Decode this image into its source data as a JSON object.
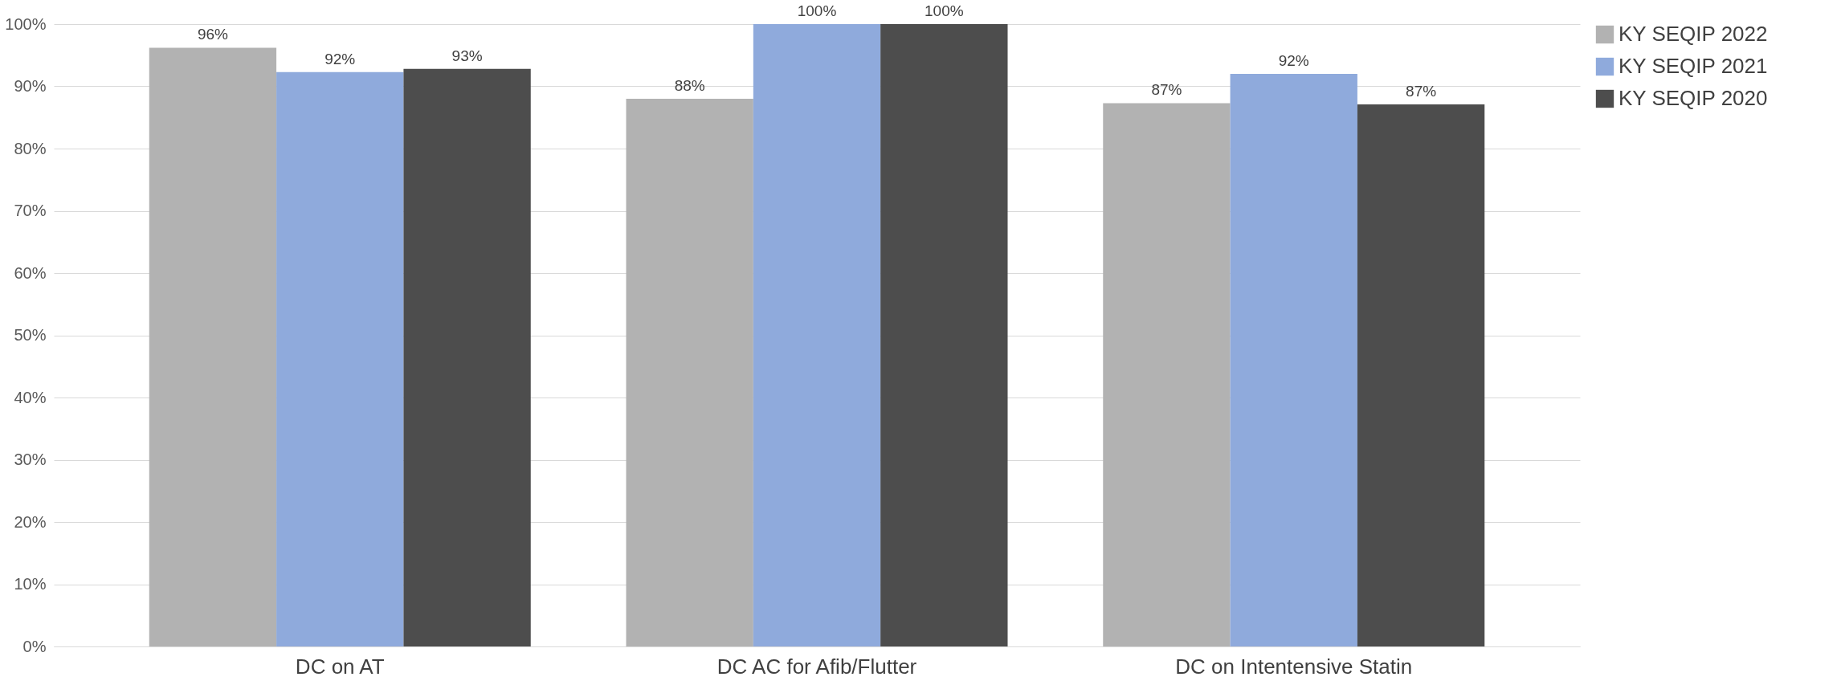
{
  "chart_data": {
    "type": "bar",
    "categories": [
      "DC on AT",
      "DC AC for Afib/Flutter",
      "DC on Intentensive Statin"
    ],
    "series": [
      {
        "name": "KY SEQIP 2022",
        "color": "#b2b2b2",
        "values": [
          96.2,
          88,
          87.3
        ],
        "value_labels": [
          "96%",
          "88%",
          "87%"
        ]
      },
      {
        "name": "KY SEQIP 2021",
        "color": "#8faadc",
        "values": [
          92.3,
          100,
          92
        ],
        "value_labels": [
          "92%",
          "100%",
          "92%"
        ]
      },
      {
        "name": "KY SEQIP 2020",
        "color": "#4d4d4d",
        "values": [
          92.8,
          100,
          87.1
        ],
        "value_labels": [
          "93%",
          "100%",
          "87%"
        ]
      }
    ],
    "ylim": [
      0,
      100
    ],
    "yticks": [
      {
        "value": 0,
        "label": "0%"
      },
      {
        "value": 10,
        "label": "10%"
      },
      {
        "value": 20,
        "label": "20%"
      },
      {
        "value": 30,
        "label": "30%"
      },
      {
        "value": 40,
        "label": "40%"
      },
      {
        "value": 50,
        "label": "50%"
      },
      {
        "value": 60,
        "label": "60%"
      },
      {
        "value": 70,
        "label": "70%"
      },
      {
        "value": 80,
        "label": "80%"
      },
      {
        "value": 90,
        "label": "90%"
      },
      {
        "value": 100,
        "label": "100%"
      }
    ],
    "grid": "y",
    "legend": "right"
  }
}
